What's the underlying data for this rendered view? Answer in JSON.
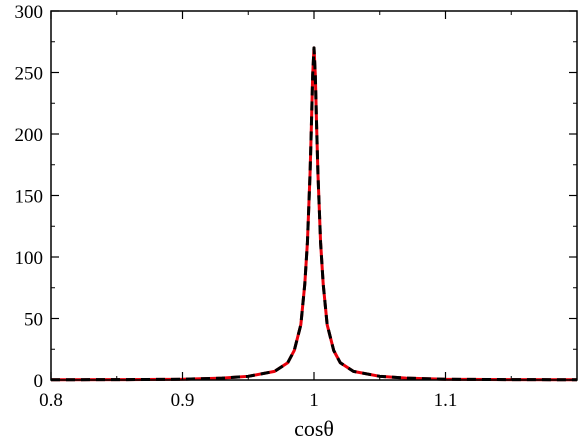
{
  "chart_data": {
    "type": "line",
    "title": "",
    "xlabel": "cosθ",
    "ylabel": "",
    "xlim": [
      0.8,
      1.2
    ],
    "ylim": [
      0,
      300
    ],
    "grid": false,
    "x_ticks": [
      0.8,
      0.9,
      1.0,
      1.1
    ],
    "x_tick_labels": [
      "0.8",
      "0.9",
      "1",
      "1.1"
    ],
    "y_ticks": [
      0,
      50,
      100,
      150,
      200,
      250,
      300
    ],
    "y_tick_labels": [
      "0",
      "50",
      "100",
      "150",
      "200",
      "250",
      "300"
    ],
    "series": [
      {
        "color": "#e8000b",
        "style": "solid",
        "x": [
          0.8,
          0.85,
          0.9,
          0.93,
          0.95,
          0.97,
          0.98,
          0.985,
          0.99,
          0.993,
          0.995,
          0.997,
          0.998,
          0.999,
          1.0,
          1.001,
          1.002,
          1.003,
          1.005,
          1.007,
          1.01,
          1.015,
          1.02,
          1.03,
          1.05,
          1.07,
          1.1,
          1.15,
          1.2
        ],
        "y": [
          0.2,
          0.3,
          0.6,
          1.5,
          3,
          7,
          14,
          24,
          45,
          78,
          112,
          168,
          206,
          248,
          270,
          248,
          206,
          168,
          112,
          78,
          45,
          24,
          14,
          7,
          3,
          1.5,
          0.6,
          0.3,
          0.2
        ]
      },
      {
        "color": "#000000",
        "style": "dashed",
        "x": [
          0.8,
          0.85,
          0.9,
          0.93,
          0.95,
          0.97,
          0.98,
          0.985,
          0.99,
          0.993,
          0.995,
          0.997,
          0.998,
          0.999,
          1.0,
          1.001,
          1.002,
          1.003,
          1.005,
          1.007,
          1.01,
          1.015,
          1.02,
          1.03,
          1.05,
          1.07,
          1.1,
          1.15,
          1.2
        ],
        "y": [
          0.2,
          0.3,
          0.6,
          1.5,
          3,
          7,
          14,
          24,
          45,
          78,
          112,
          168,
          206,
          248,
          270,
          248,
          206,
          168,
          112,
          78,
          45,
          24,
          14,
          7,
          3,
          1.5,
          0.6,
          0.3,
          0.2
        ]
      }
    ]
  }
}
